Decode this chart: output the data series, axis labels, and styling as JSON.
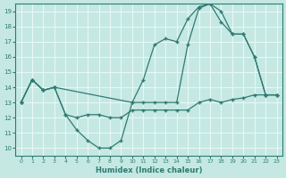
{
  "xlabel": "Humidex (Indice chaleur)",
  "xlim": [
    -0.5,
    23.5
  ],
  "ylim": [
    9.5,
    19.5
  ],
  "yticks": [
    10,
    11,
    12,
    13,
    14,
    15,
    16,
    17,
    18,
    19
  ],
  "xticks": [
    0,
    1,
    2,
    3,
    4,
    5,
    6,
    7,
    8,
    9,
    10,
    11,
    12,
    13,
    14,
    15,
    16,
    17,
    18,
    19,
    20,
    21,
    22,
    23
  ],
  "bg_color": "#c5e8e3",
  "grid_color": "#e8f8f5",
  "line_color": "#2e7b72",
  "line1_x": [
    0,
    1,
    2,
    3,
    4,
    5,
    6,
    7,
    8,
    9,
    10,
    11,
    12,
    13,
    14,
    15,
    16,
    17,
    18,
    19,
    20,
    21,
    22,
    23
  ],
  "line1_y": [
    13,
    14.5,
    13.8,
    14.0,
    12.2,
    12.0,
    12.2,
    12.2,
    12.0,
    12.0,
    12.5,
    12.5,
    12.5,
    12.5,
    12.5,
    12.5,
    13.0,
    13.2,
    13.0,
    13.2,
    13.3,
    13.5,
    13.5,
    13.5
  ],
  "line2_x": [
    0,
    1,
    2,
    3,
    4,
    5,
    6,
    7,
    8,
    9,
    10,
    11,
    12,
    13,
    14,
    15,
    16,
    17,
    18,
    19,
    20,
    21,
    22,
    23
  ],
  "line2_y": [
    13,
    14.5,
    13.8,
    14.0,
    12.2,
    11.2,
    10.5,
    10.0,
    10.0,
    10.5,
    13.0,
    13.0,
    13.0,
    13.0,
    13.0,
    16.8,
    19.2,
    19.5,
    19.0,
    17.5,
    17.5,
    16.0,
    13.5,
    13.5
  ],
  "line3_x": [
    0,
    1,
    2,
    3,
    10,
    11,
    12,
    13,
    14,
    15,
    16,
    17,
    18,
    19,
    20,
    21,
    22,
    23
  ],
  "line3_y": [
    13,
    14.5,
    13.8,
    14.0,
    13.0,
    14.5,
    16.8,
    17.2,
    17.0,
    18.5,
    19.3,
    19.5,
    18.3,
    17.5,
    17.5,
    16.0,
    13.5,
    13.5
  ]
}
